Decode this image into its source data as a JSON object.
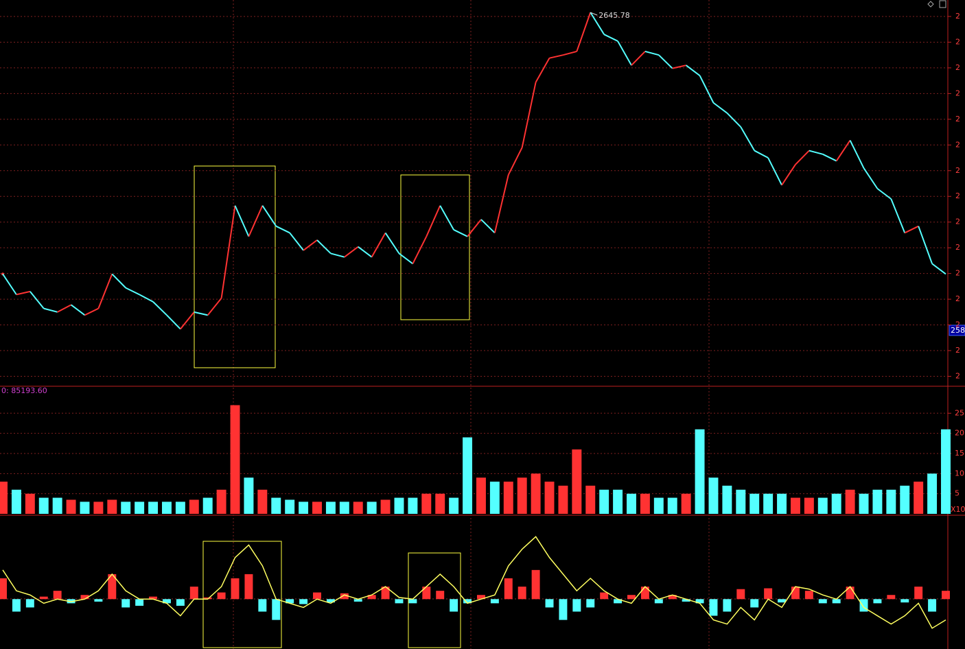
{
  "chart_data": [
    {
      "type": "line",
      "values": [
        2594.9,
        2590.9,
        2591.5,
        2588.2,
        2587.5,
        2588.9,
        2586.9,
        2588.2,
        2594.9,
        2592.2,
        2590.9,
        2589.5,
        2586.9,
        2584.2,
        2587.5,
        2586.9,
        2590.2,
        2608.2,
        2602.2,
        2608.2,
        2604.2,
        2602.9,
        2599.5,
        2601.5,
        2598.9,
        2598.2,
        2600.2,
        2598.2,
        2602.9,
        2598.9,
        2596.9,
        2602.2,
        2608.2,
        2603.5,
        2602.2,
        2605.5,
        2602.9,
        2614.2,
        2619.5,
        2632.2,
        2636.9,
        2637.5,
        2638.2,
        2645.78,
        2641.5,
        2640.2,
        2635.5,
        2638.2,
        2637.5,
        2634.9,
        2635.5,
        2633.5,
        2628.2,
        2626.2,
        2623.5,
        2618.9,
        2617.5,
        2612.2,
        2616.2,
        2618.9,
        2618.2,
        2616.9,
        2620.9,
        2615.5,
        2611.5,
        2609.5,
        2602.9,
        2604.2,
        2596.9,
        2594.9
      ],
      "ylim": [
        2573.2,
        2648.2
      ],
      "yticks": [
        {
          "value": 2575,
          "label": "2"
        },
        {
          "value": 2580,
          "label": "2"
        },
        {
          "value": 2585,
          "label": "2"
        },
        {
          "value": 2590,
          "label": "2"
        },
        {
          "value": 2595,
          "label": "2"
        },
        {
          "value": 2600,
          "label": "2"
        },
        {
          "value": 2605,
          "label": "2"
        },
        {
          "value": 2610,
          "label": "2"
        },
        {
          "value": 2615,
          "label": "2"
        },
        {
          "value": 2620,
          "label": "2"
        },
        {
          "value": 2625,
          "label": "2"
        },
        {
          "value": 2630,
          "label": "2"
        },
        {
          "value": 2635,
          "label": "2"
        },
        {
          "value": 2640,
          "label": "2"
        },
        {
          "value": 2645,
          "label": "2"
        }
      ],
      "current_tag": "258",
      "grid": true
    },
    {
      "type": "bar",
      "title": "0: 85193.60",
      "values": [
        8,
        6,
        5,
        4,
        4,
        3.5,
        3,
        3,
        3.5,
        3,
        3,
        3,
        3,
        3,
        3.5,
        4,
        6,
        27,
        9,
        6,
        4,
        3.5,
        3,
        3,
        3,
        3,
        3,
        3,
        3.5,
        4,
        4,
        5,
        5,
        4,
        19,
        9,
        8,
        8,
        9,
        10,
        8,
        7,
        16,
        7,
        6,
        6,
        5,
        5,
        4,
        4,
        5,
        21,
        9,
        7,
        6,
        5,
        5,
        5,
        4,
        4,
        4,
        5,
        6,
        5,
        6,
        6,
        7,
        8,
        10,
        21
      ],
      "ylim": [
        0,
        31.7
      ],
      "yticks": [
        5,
        10,
        15,
        20,
        25
      ],
      "unit_label": "X10",
      "grid": true
    },
    {
      "type": "macd",
      "values": [
        2.5,
        -1.5,
        -1,
        0.3,
        1,
        -0.5,
        0.5,
        -0.3,
        3,
        -1,
        -0.8,
        0.3,
        -0.5,
        -0.8,
        1.5,
        0.2,
        0.8,
        2.5,
        3,
        -1.5,
        -2.5,
        -0.5,
        -0.6,
        0.8,
        -0.4,
        0.7,
        -0.3,
        0.5,
        1.5,
        -0.5,
        -0.5,
        1.5,
        1,
        -1.5,
        -0.5,
        0.5,
        -0.5,
        2.5,
        1.5,
        3.5,
        -1,
        -2.5,
        -1.5,
        -1,
        0.8,
        -0.5,
        0.5,
        1.5,
        -0.5,
        0.5,
        -0.3,
        -0.5,
        -2,
        -1.5,
        1.2,
        -1,
        1.3,
        -0.4,
        1.5,
        1,
        -0.5,
        -0.5,
        1.5,
        -1.5,
        -0.5,
        0.5,
        -0.4,
        1.5,
        -1.5,
        1
      ],
      "line": [
        3.5,
        1,
        0.5,
        -0.5,
        0,
        -0.3,
        0,
        1,
        3,
        1,
        0,
        0,
        -0.5,
        -2,
        0,
        0,
        1.5,
        5,
        6.5,
        4,
        0,
        -0.5,
        -1,
        0,
        -0.5,
        0.5,
        0,
        0.5,
        1.5,
        0.2,
        0,
        1.5,
        3,
        1.5,
        -0.5,
        0,
        0.5,
        4,
        6,
        7.5,
        5,
        3,
        1,
        2.5,
        1,
        0,
        -0.5,
        1.5,
        0,
        0.5,
        0,
        -0.5,
        -2.5,
        -3,
        -1,
        -2.5,
        0,
        -1,
        1.5,
        1.2,
        0.5,
        0,
        1.5,
        -1,
        -2,
        -3,
        -2,
        -0.5,
        -3.5,
        -2.5
      ],
      "ylim": [
        -5.5,
        10
      ]
    }
  ]
}
